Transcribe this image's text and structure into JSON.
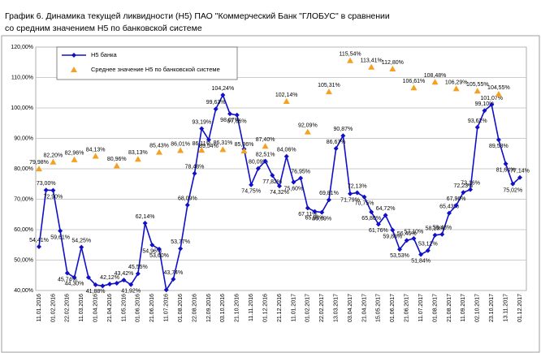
{
  "chart_data": {
    "type": "line",
    "title": [
      "График 6.  Динамика текущей ликвидности (Н5) ПАО \"Коммерческий Банк \"ГЛОБУС\" в сравнении",
      "со средним значением Н5 по банковской системе"
    ],
    "categories": [
      "11.01.2016",
      null,
      "01.02.2016",
      null,
      "22.02.2016",
      null,
      "11.03.2016",
      null,
      "01.04.2016",
      null,
      "21.04.2016",
      null,
      "11.05.2016",
      null,
      "01.06.2016",
      null,
      "21.06.2016",
      null,
      "11.07.2016",
      null,
      "01.08.2016",
      null,
      "22.08.2016",
      null,
      "12.09.2016",
      null,
      "03.10.2016",
      null,
      "21.10.2016",
      null,
      "11.11.2016",
      null,
      "01.12.2016",
      null,
      "21.12.2016",
      null,
      "11.01.2017",
      null,
      "01.02.2017",
      null,
      "22.02.2017",
      null,
      "13.03.2017",
      null,
      "03.04.2017",
      null,
      "21.04.2017",
      null,
      "15.05.2017",
      null,
      "01.06.2017",
      null,
      "21.06.2017",
      null,
      "11.07.2017",
      null,
      "01.08.2017",
      null,
      "21.08.2017",
      null,
      "11.09.2017",
      null,
      "02.10.2017",
      null,
      "23.10.2017",
      null,
      "13.11.2017",
      null,
      "01.12.2017"
    ],
    "series": [
      {
        "name": "Н5 банка",
        "color": "#1010c8",
        "marker": "diamond",
        "line": true,
        "values": [
          54.41,
          73.0,
          72.9,
          59.61,
          45.74,
          44.3,
          54.25,
          44.3,
          41.88,
          41.5,
          42.12,
          42.4,
          43.42,
          41.92,
          45.55,
          62.14,
          54.96,
          53.6,
          40.2,
          43.74,
          53.77,
          68.09,
          78.48,
          93.19,
          89.54,
          99.63,
          104.24,
          98.07,
          97.66,
          86.5,
          74.75,
          80.09,
          82.51,
          77.82,
          74.32,
          84.06,
          75.6,
          76.95,
          67.11,
          65.98,
          65.69,
          69.81,
          86.67,
          90.87,
          71.79,
          72.13,
          70.75,
          65.8,
          61.76,
          64.72,
          59.88,
          53.53,
          56.46,
          57.1,
          51.84,
          53.12,
          58.19,
          58.48,
          65.43,
          67.96,
          72.23,
          73.16,
          93.62,
          99.1,
          101.07,
          89.53,
          81.64,
          75.02,
          77.14
        ],
        "value_labels": [
          "54,41%",
          "73,00%",
          "72,90%",
          "59,61%",
          "45,74%",
          "44,30%",
          "54,25%",
          null,
          "41,88%",
          null,
          "42,12%",
          null,
          "43,42%",
          "41,92%",
          "45,55%",
          "62,14%",
          "54,96%",
          "53,60%",
          null,
          "43,74%",
          "53,77%",
          "68,09%",
          "78,48%",
          "93,19%",
          "89,54%",
          "99,63%",
          "104,24%",
          "98,07%",
          "97,66%",
          null,
          "74,75%",
          "80,09%",
          "82,51%",
          "77,82%",
          "74,32%",
          "84,06%",
          "75,60%",
          "76,95%",
          "67,11%",
          "65,98%",
          "65,69%",
          "69,81%",
          "86,67%",
          "90,87%",
          "71,79%",
          "72,13%",
          "70,75%",
          "65,80%",
          "61,76%",
          "64,72%",
          "59,88%",
          "53,53%",
          "56,46%",
          "57,10%",
          "51,84%",
          "53,12%",
          "58,19%",
          "58,48%",
          "65,43%",
          "67,96%",
          "72,23%",
          "73,16%",
          "93,62%",
          "99,10%",
          "101,07%",
          "89,53%",
          "81,64%",
          "75,02%",
          "77,14%"
        ]
      },
      {
        "name": "Среднее значение Н5 по банковской системе",
        "color": "#f5a01e",
        "marker": "triangle",
        "line": false,
        "values": [
          79.98,
          null,
          82.2,
          null,
          null,
          82.96,
          null,
          null,
          84.13,
          null,
          null,
          80.96,
          null,
          null,
          83.13,
          null,
          null,
          85.43,
          null,
          null,
          86.01,
          null,
          null,
          86.11,
          null,
          null,
          86.31,
          null,
          null,
          85.86,
          null,
          null,
          87.4,
          null,
          null,
          102.14,
          null,
          null,
          92.09,
          null,
          null,
          105.31,
          null,
          null,
          115.54,
          null,
          null,
          113.41,
          null,
          null,
          112.8,
          null,
          null,
          106.61,
          null,
          null,
          108.48,
          null,
          null,
          106.29,
          null,
          null,
          105.55,
          null,
          null,
          104.55,
          null,
          null,
          null
        ],
        "value_labels": [
          "79,98%",
          null,
          "82,20%",
          null,
          null,
          "82,96%",
          null,
          null,
          "84,13%",
          null,
          null,
          "80,96%",
          null,
          null,
          "83,13%",
          null,
          null,
          "85,43%",
          null,
          null,
          "86,01%",
          null,
          null,
          "86,11%",
          null,
          null,
          "86,31%",
          null,
          null,
          "85,86%",
          null,
          null,
          "87,40%",
          null,
          null,
          "102,14%",
          null,
          null,
          "92,09%",
          null,
          null,
          "105,31%",
          null,
          null,
          "115,54%",
          null,
          null,
          "113,41%",
          null,
          null,
          "112,80%",
          null,
          null,
          "106,61%",
          null,
          null,
          "108,48%",
          null,
          null,
          "106,29%",
          null,
          null,
          "105,55%",
          null,
          null,
          "104,55%",
          null,
          null,
          null
        ]
      }
    ],
    "ylim": [
      40,
      120
    ],
    "yticks": [
      {
        "value": 40,
        "label": "40,00%"
      },
      {
        "value": 50,
        "label": "50,00%"
      },
      {
        "value": 60,
        "label": "60,00%"
      },
      {
        "value": 70,
        "label": "70,00%"
      },
      {
        "value": 80,
        "label": "80,00%"
      },
      {
        "value": 90,
        "label": "90,00%"
      },
      {
        "value": 100,
        "label": "100,00%"
      },
      {
        "value": 110,
        "label": "110,00%"
      },
      {
        "value": 120,
        "label": "120,00%"
      }
    ],
    "grid": true
  }
}
